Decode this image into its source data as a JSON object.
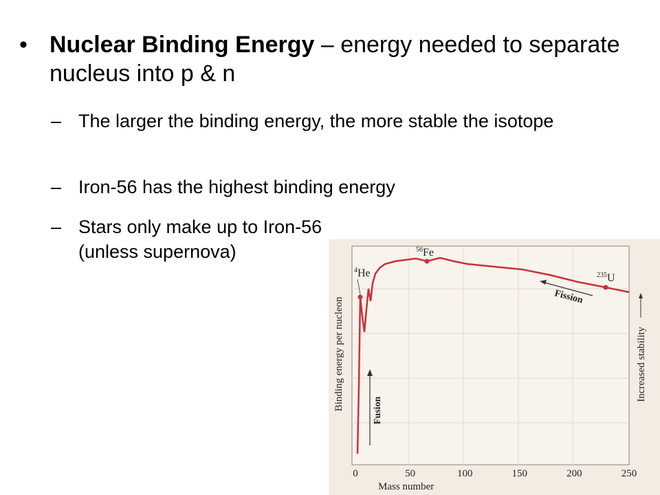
{
  "bullets": [
    {
      "bold": "Nuclear Binding Energy",
      "text": " – energy needed to separate nucleus into p & n",
      "sub": [
        "The larger the binding energy, the more stable the isotope",
        "Iron-56 has the highest binding energy",
        "Stars only make up to Iron-56 (unless supernova)"
      ]
    }
  ],
  "figure": {
    "x_label": "Mass number",
    "y_label": "Binding energy per nucleon",
    "side_label": "Increased stability",
    "x_ticks": [
      "0",
      "50",
      "100",
      "150",
      "200",
      "250"
    ],
    "fission": "Fission",
    "fusion": "Fusion",
    "points": [
      {
        "sup": "4",
        "symbol": "He"
      },
      {
        "sup": "56",
        "symbol": "Fe"
      },
      {
        "sup": "235",
        "symbol": "U"
      }
    ]
  }
}
